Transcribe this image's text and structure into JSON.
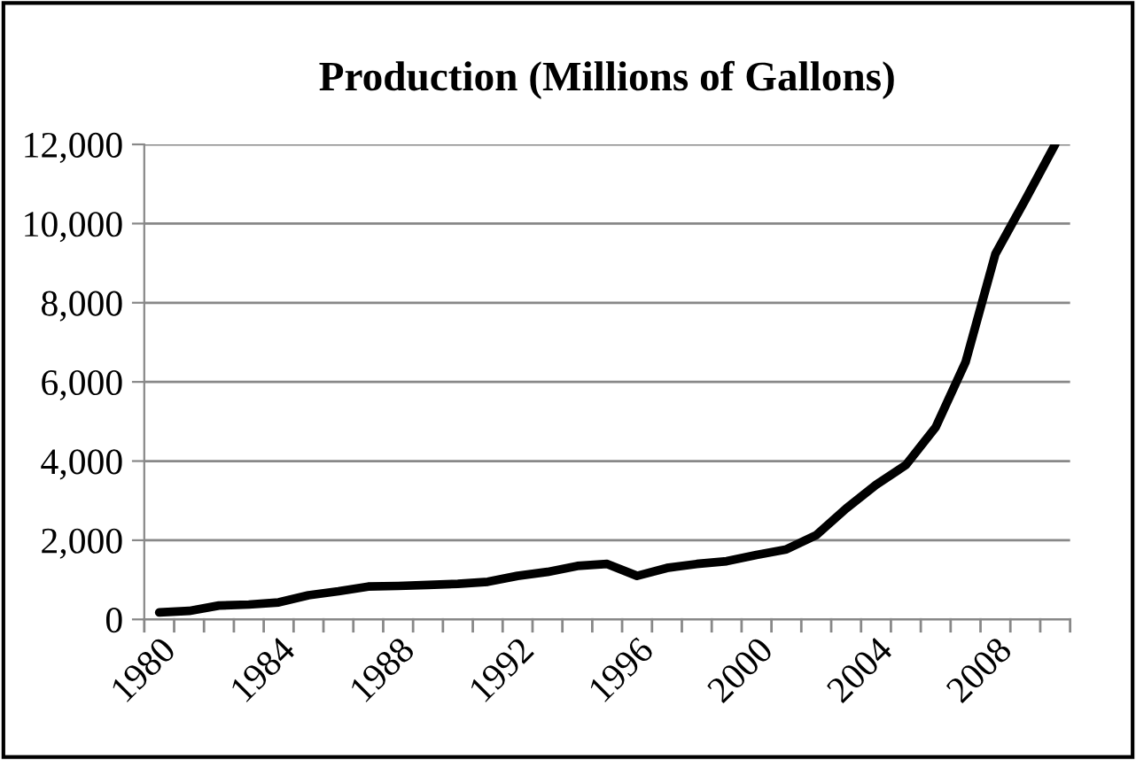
{
  "chart_data": {
    "type": "line",
    "title": "Production (Millions of Gallons)",
    "categories": [
      "1980",
      null,
      null,
      null,
      "1984",
      null,
      null,
      null,
      "1988",
      null,
      null,
      null,
      "1992",
      null,
      null,
      null,
      "1996",
      null,
      null,
      null,
      "2000",
      null,
      null,
      null,
      "2004",
      null,
      null,
      null,
      "2008",
      null,
      null
    ],
    "series": [
      {
        "color": "#000000",
        "values": [
          175,
          215,
          350,
          375,
          430,
          610,
          710,
          830,
          845,
          870,
          900,
          950,
          1100,
          1200,
          1350,
          1400,
          1100,
          1300,
          1400,
          1470,
          1630,
          1770,
          2130,
          2800,
          3400,
          3900,
          4855,
          6500,
          9235,
          10600,
          12000
        ]
      }
    ],
    "ylim": [
      0,
      12000
    ],
    "yticks": [
      {
        "value": 0,
        "label": "0"
      },
      {
        "value": 2000,
        "label": "2,000"
      },
      {
        "value": 4000,
        "label": "4,000"
      },
      {
        "value": 6000,
        "label": "6,000"
      },
      {
        "value": 8000,
        "label": "8,000"
      },
      {
        "value": 10000,
        "label": "10,000"
      },
      {
        "value": 12000,
        "label": "12,000"
      }
    ],
    "grid": "y",
    "marker": "none",
    "line_style": "solid"
  }
}
